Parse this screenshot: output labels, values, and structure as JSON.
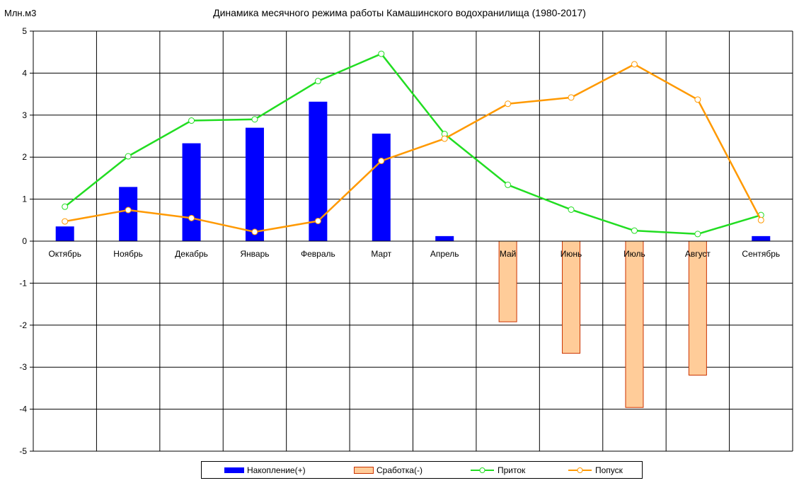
{
  "chart_data": {
    "type": "bar",
    "title": "Динамика месячного режима работы Камашинского водохранилища (1980-2017)",
    "ylabel": "Млн.м3",
    "xlabel": "",
    "ylim": [
      -5,
      5
    ],
    "yticks": [
      "5",
      "4",
      "3",
      "2",
      "1",
      "0",
      "-1",
      "-2",
      "-3",
      "-4",
      "-5"
    ],
    "grid": true,
    "legend_position": "bottom",
    "categories": [
      "Октябрь",
      "Ноябрь",
      "Декабрь",
      "Январь",
      "Февраль",
      "Март",
      "Апрель",
      "Май",
      "Июнь",
      "Июль",
      "Август",
      "Сентябрь"
    ],
    "series": [
      {
        "name": "Накопление(+)",
        "kind": "bar",
        "color": "#0000ff",
        "values": [
          0.35,
          1.29,
          2.33,
          2.7,
          3.32,
          2.56,
          0.12,
          0,
          0,
          0,
          0,
          0.12
        ]
      },
      {
        "name": "Сработка(-)",
        "kind": "bar",
        "color": "#ffcc99",
        "border": "#cc3300",
        "values": [
          0,
          0,
          0,
          0,
          0,
          0,
          0,
          -1.92,
          -2.67,
          -3.96,
          -3.19,
          0
        ]
      },
      {
        "name": "Приток",
        "kind": "line",
        "color": "#22dd22",
        "values": [
          0.82,
          2.02,
          2.87,
          2.9,
          3.81,
          4.46,
          2.55,
          1.34,
          0.75,
          0.25,
          0.17,
          0.62
        ]
      },
      {
        "name": "Попуск",
        "kind": "line",
        "color": "#ff9900",
        "values": [
          0.47,
          0.74,
          0.55,
          0.22,
          0.48,
          1.91,
          2.44,
          3.27,
          3.42,
          4.21,
          3.37,
          0.5
        ]
      }
    ]
  }
}
